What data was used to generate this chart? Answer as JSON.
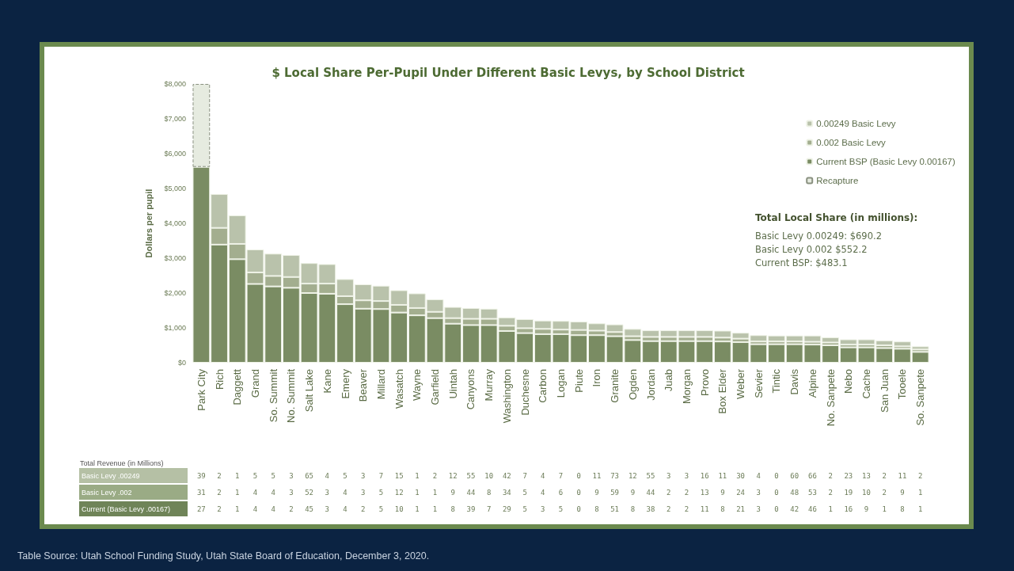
{
  "chart_data": [
    {
      "type": "bar",
      "title": "$ Local Share Per-Pupil Under Different Basic Levys, by School District",
      "ylabel": "Dollars per pupil",
      "categories": [
        "Park City",
        "Rich",
        "Daggett",
        "Grand",
        "So. Summit",
        "No. Summit",
        "Salt Lake",
        "Kane",
        "Emery",
        "Beaver",
        "Millard",
        "Wasatch",
        "Wayne",
        "Garfield",
        "Uintah",
        "Canyons",
        "Murray",
        "Washington",
        "Duchesne",
        "Carbon",
        "Logan",
        "Piute",
        "Iron",
        "Granite",
        "Ogden",
        "Jordan",
        "Juab",
        "Morgan",
        "Provo",
        "Box Elder",
        "Weber",
        "Sevier",
        "Tintic",
        "Davis",
        "Alpine",
        "No. Sanpete",
        "Nebo",
        "Cache",
        "San Juan",
        "Tooele",
        "So. Sanpete"
      ],
      "series": [
        {
          "name": "Current BSP (Basic Levy 0.00167)",
          "color": "#7a8c63",
          "values": [
            5620,
            3390,
            2970,
            2260,
            2190,
            2150,
            2000,
            1980,
            1680,
            1550,
            1540,
            1440,
            1360,
            1280,
            1120,
            1080,
            1080,
            910,
            850,
            820,
            820,
            790,
            790,
            760,
            650,
            620,
            620,
            620,
            620,
            610,
            590,
            530,
            530,
            530,
            520,
            500,
            440,
            440,
            420,
            400,
            310
          ]
        },
        {
          "name": "0.002 Basic Levy",
          "color": "#a3ae8f",
          "values": [
            null,
            480,
            440,
            330,
            300,
            310,
            270,
            290,
            230,
            240,
            230,
            220,
            210,
            180,
            160,
            180,
            180,
            150,
            140,
            150,
            130,
            150,
            130,
            120,
            110,
            120,
            120,
            120,
            120,
            110,
            100,
            80,
            80,
            80,
            80,
            80,
            80,
            80,
            80,
            70,
            70
          ]
        },
        {
          "name": "0.00249 Basic Levy",
          "color": "#b9c2ab",
          "values": [
            null,
            970,
            820,
            660,
            640,
            630,
            590,
            560,
            490,
            460,
            440,
            420,
            420,
            360,
            320,
            310,
            290,
            240,
            260,
            240,
            250,
            240,
            210,
            220,
            210,
            190,
            190,
            190,
            190,
            200,
            170,
            180,
            170,
            170,
            180,
            150,
            150,
            150,
            140,
            140,
            90
          ]
        },
        {
          "name": "Recapture",
          "color": "#e6ebe0",
          "line_style": "dashed",
          "values": [
            2380,
            null,
            null,
            null,
            null,
            null,
            null,
            null,
            null,
            null,
            null,
            null,
            null,
            null,
            null,
            null,
            null,
            null,
            null,
            null,
            null,
            null,
            null,
            null,
            null,
            null,
            null,
            null,
            null,
            null,
            null,
            null,
            null,
            null,
            null,
            null,
            null,
            null,
            null,
            null,
            null
          ]
        }
      ],
      "stacked": true,
      "ylim": [
        0,
        8000
      ],
      "yticks": [
        {
          "value": 0,
          "label": "$0"
        },
        {
          "value": 1000,
          "label": "$1,000"
        },
        {
          "value": 2000,
          "label": "$2,000"
        },
        {
          "value": 3000,
          "label": "$3,000"
        },
        {
          "value": 4000,
          "label": "$4,000"
        },
        {
          "value": 5000,
          "label": "$5,000"
        },
        {
          "value": 6000,
          "label": "$6,000"
        },
        {
          "value": 7000,
          "label": "$7,000"
        },
        {
          "value": 8000,
          "label": "$8,000"
        }
      ],
      "grid": false,
      "legend": "top right",
      "annotations": [
        "Total Local Share (in millions):",
        "Basic Levy 0.00249: $690.2",
        "Basic Levy 0.002 $552.2",
        "Current BSP: $483.1",
        "Table Source: Utah School Funding Study, Utah State Board of Education, December 3, 2020."
      ]
    },
    {
      "type": "heatmap",
      "title": "Total Revenue (in Millions)",
      "data_labels": true,
      "categories": [
        null,
        null,
        null,
        null,
        null,
        null,
        null,
        null,
        null,
        null,
        null,
        null,
        null,
        null,
        null,
        null,
        null,
        null,
        null,
        null,
        null,
        null,
        null,
        null,
        null,
        null,
        null,
        null,
        null,
        null,
        null,
        null,
        null,
        null,
        null,
        null,
        null,
        null,
        null,
        null,
        null
      ],
      "y_categories": [
        "Basic Levy .00249",
        "Basic Levy .002",
        "Current (Basic Levy .00167)"
      ],
      "cells": [
        [
          39,
          2,
          1,
          5,
          5,
          3,
          65,
          4,
          5,
          3,
          7,
          15,
          1,
          2,
          12,
          55,
          10,
          42,
          7,
          4,
          7,
          0,
          11,
          73,
          12,
          55,
          3,
          3,
          16,
          11,
          30,
          4,
          0,
          60,
          66,
          2,
          23,
          13,
          2,
          11,
          2
        ],
        [
          31,
          2,
          1,
          4,
          4,
          3,
          52,
          3,
          4,
          3,
          5,
          12,
          1,
          1,
          9,
          44,
          8,
          34,
          5,
          4,
          6,
          0,
          9,
          59,
          9,
          44,
          2,
          2,
          13,
          9,
          24,
          3,
          0,
          48,
          53,
          2,
          19,
          10,
          2,
          9,
          1
        ],
        [
          27,
          2,
          1,
          4,
          4,
          2,
          45,
          3,
          4,
          2,
          5,
          10,
          1,
          1,
          8,
          39,
          7,
          29,
          5,
          3,
          5,
          0,
          8,
          51,
          8,
          38,
          2,
          2,
          11,
          8,
          21,
          3,
          0,
          42,
          46,
          1,
          16,
          9,
          1,
          8,
          1
        ]
      ]
    }
  ]
}
